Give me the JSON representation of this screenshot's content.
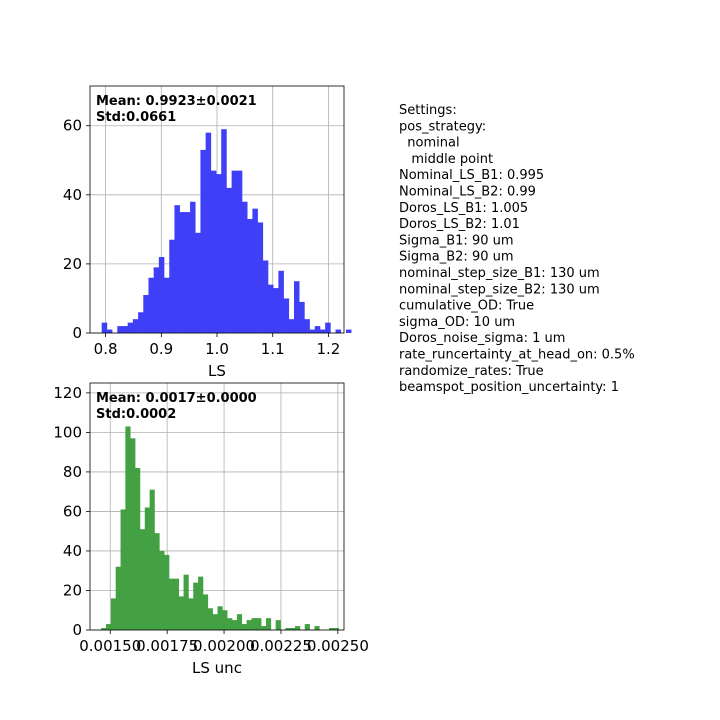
{
  "chart_data": [
    {
      "type": "histogram",
      "title": "",
      "xlabel": "LS",
      "ylabel": "",
      "color": "#3b3bf7",
      "xlim": [
        0.772,
        1.228
      ],
      "ylim": [
        0,
        71.5
      ],
      "grid": true,
      "xticks": [
        0.8,
        0.9,
        1.0,
        1.1,
        1.2
      ],
      "xtick_labels": [
        "0.8",
        "0.9",
        "1.0",
        "1.1",
        "1.2"
      ],
      "yticks": [
        0,
        20,
        40,
        60
      ],
      "ytick_labels": [
        "0",
        "20",
        "40",
        "60"
      ],
      "bin_start": 0.793,
      "bin_width": 0.00933,
      "counts": [
        3,
        1,
        0,
        2,
        2,
        3,
        4,
        6,
        11,
        16,
        19,
        22,
        16,
        27,
        37,
        35,
        35,
        38,
        29,
        53,
        58,
        47,
        46,
        59,
        42,
        47,
        47,
        38,
        33,
        36,
        32,
        21,
        14,
        13,
        18,
        10,
        4,
        15,
        9,
        4,
        1,
        2,
        1,
        3,
        0,
        1,
        0,
        1
      ],
      "stats": {
        "mean": "Mean: 0.9923±0.0021",
        "std": "Std:0.0661"
      }
    },
    {
      "type": "histogram",
      "title": "",
      "xlabel": "LS unc",
      "ylabel": "",
      "color": "#3f9e3f",
      "xlim": [
        0.001411,
        0.002527
      ],
      "ylim": [
        0,
        125
      ],
      "grid": true,
      "xticks": [
        0.0015,
        0.00175,
        0.002,
        0.00225,
        0.0025
      ],
      "xtick_labels": [
        "0.00150",
        "0.00175",
        "0.00200",
        "0.00225",
        "0.00250"
      ],
      "yticks": [
        0,
        20,
        40,
        60,
        80,
        100,
        120
      ],
      "ytick_labels": [
        "0",
        "20",
        "40",
        "60",
        "80",
        "100",
        "120"
      ],
      "bin_start": 0.00146,
      "bin_width": 2.13e-05,
      "counts": [
        1,
        3,
        16,
        32,
        61,
        103,
        97,
        82,
        51,
        62,
        71,
        49,
        40,
        38,
        26,
        26,
        17,
        28,
        16,
        24,
        27,
        18,
        11,
        8,
        12,
        10,
        6,
        5,
        8,
        3,
        5,
        6,
        6,
        2,
        6,
        0,
        5,
        0,
        1,
        1,
        2,
        0,
        3,
        0,
        2,
        0,
        0,
        1,
        1,
        0
      ],
      "stats": {
        "mean": "Mean: 0.0017±0.0000",
        "std": "Std:0.0002"
      }
    }
  ],
  "settings": [
    "Settings:",
    "pos_strategy:",
    "  nominal",
    "   middle point",
    "Nominal_LS_B1: 0.995",
    "Nominal_LS_B2: 0.99",
    "Doros_LS_B1: 1.005",
    "Doros_LS_B2: 1.01",
    "Sigma_B1: 90 um",
    "Sigma_B2: 90 um",
    "nominal_step_size_B1: 130 um",
    "nominal_step_size_B2: 130 um",
    "cumulative_OD: True",
    "sigma_OD: 10 um",
    "Doros_noise_sigma: 1 um",
    "rate_runcertainty_at_head_on: 0.5%",
    "randomize_rates: True",
    "beamspot_position_uncertainty: 1"
  ]
}
